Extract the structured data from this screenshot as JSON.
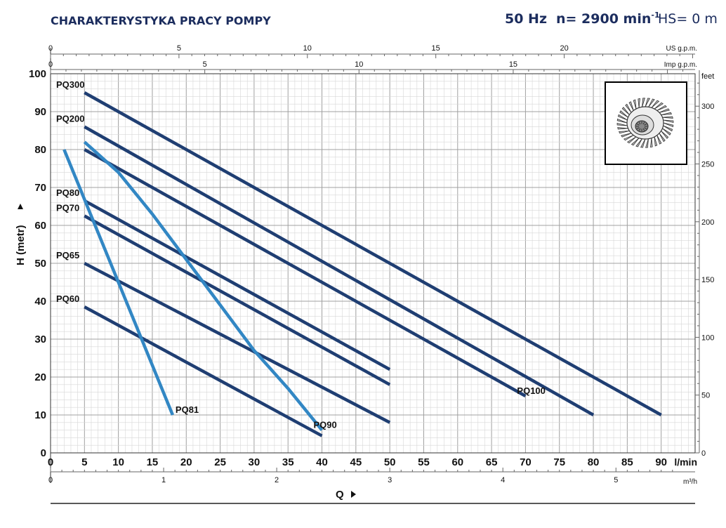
{
  "header": {
    "title": "CHARAKTERYSTYKA PRACY POMPY",
    "frequency": "50 Hz",
    "speed_prefix": "n= 2900 min",
    "speed_exp": "-1",
    "hs": "HS= 0 m"
  },
  "icon": "impeller-image",
  "colors": {
    "dark_series": "#1f3e72",
    "light_series": "#3287c4",
    "grid_major": "#a0a0a0",
    "grid_minor": "#d7d7d7",
    "title": "#1c2d5e"
  },
  "chart_data": {
    "type": "line",
    "grid": true,
    "xlim": [
      0,
      95
    ],
    "ylim": [
      0,
      100
    ],
    "xlabel": "Q",
    "x_unit": "l/min",
    "ylabel": "H (metr)",
    "x_ticks": [
      0,
      5,
      10,
      15,
      20,
      25,
      30,
      35,
      40,
      45,
      50,
      55,
      60,
      65,
      70,
      75,
      80,
      85,
      90
    ],
    "y_ticks": [
      0,
      10,
      20,
      30,
      40,
      50,
      60,
      70,
      80,
      90,
      100
    ],
    "secondary_axes": {
      "top_us": {
        "unit": "US g.p.m.",
        "ticks": [
          0,
          5,
          10,
          15,
          20
        ]
      },
      "top_imp": {
        "unit": "Imp g.p.m.",
        "ticks": [
          0,
          5,
          10,
          15
        ]
      },
      "bottom_m3h": {
        "unit": "m³/h",
        "ticks": [
          0,
          1,
          2,
          3,
          4,
          5
        ]
      },
      "right_feet": {
        "unit": "feet",
        "ticks": [
          0,
          50,
          100,
          150,
          200,
          250,
          300
        ]
      }
    },
    "series": [
      {
        "name": "PQ300",
        "label_pos": "start",
        "shade": "dark",
        "points": [
          [
            5,
            95
          ],
          [
            90,
            10
          ]
        ]
      },
      {
        "name": "PQ200",
        "label_pos": "start",
        "shade": "dark",
        "points": [
          [
            5,
            86
          ],
          [
            80,
            10
          ]
        ]
      },
      {
        "name": "PQ100",
        "label_pos": "end",
        "shade": "dark",
        "points": [
          [
            5,
            80
          ],
          [
            70,
            15
          ]
        ]
      },
      {
        "name": "PQ80",
        "label_pos": "start",
        "shade": "dark",
        "points": [
          [
            5,
            66.5
          ],
          [
            50,
            22
          ]
        ]
      },
      {
        "name": "PQ70",
        "label_pos": "start",
        "shade": "dark",
        "points": [
          [
            5,
            62.5
          ],
          [
            50,
            18
          ]
        ]
      },
      {
        "name": "PQ65",
        "label_pos": "start",
        "shade": "dark",
        "points": [
          [
            5,
            50
          ],
          [
            50,
            8
          ]
        ]
      },
      {
        "name": "PQ60",
        "label_pos": "start",
        "shade": "dark",
        "points": [
          [
            5,
            38.5
          ],
          [
            40,
            4.5
          ]
        ]
      },
      {
        "name": "PQ81",
        "label_pos": "end",
        "shade": "light",
        "points": [
          [
            2,
            80
          ],
          [
            18,
            10
          ]
        ]
      },
      {
        "name": "PQ90",
        "label_pos": "end",
        "shade": "light",
        "points": [
          [
            5,
            82
          ],
          [
            10,
            74
          ],
          [
            15,
            63
          ],
          [
            20,
            51
          ],
          [
            25,
            39
          ],
          [
            30,
            27
          ],
          [
            35,
            17
          ],
          [
            40,
            6
          ]
        ]
      }
    ]
  }
}
